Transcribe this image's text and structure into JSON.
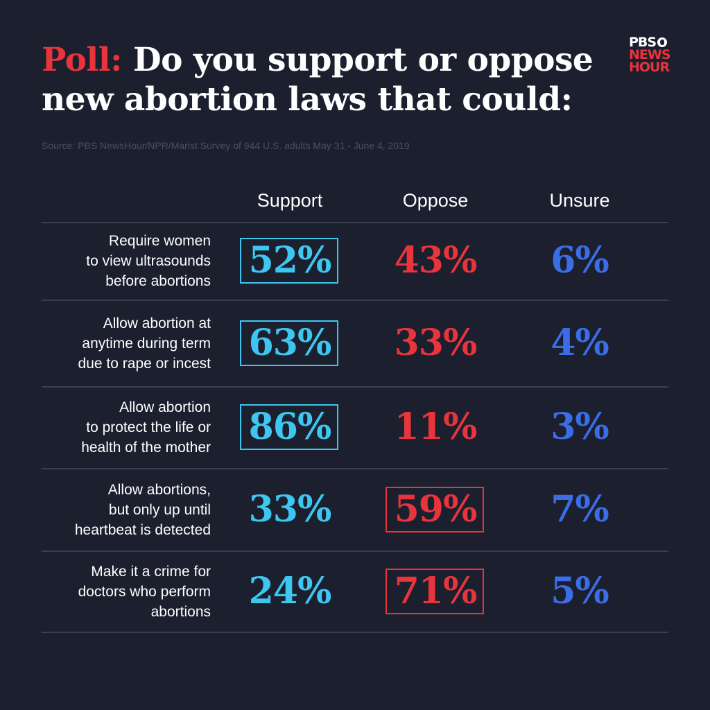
{
  "title": {
    "lead": "Poll:",
    "rest": "Do you support or oppose new abortion laws that could:"
  },
  "logo": {
    "line1": "PBS",
    "line2": "NEWS",
    "line3": "HOUR"
  },
  "source": "Source: PBS NewsHour/NPR/Marist  Survey of 944 U.S. adults May 31 - June 4, 2019",
  "colors": {
    "support": "#3dc7f0",
    "oppose": "#e8343c",
    "unsure": "#3a6de6",
    "background": "#1b1f2e"
  },
  "chart_data": {
    "type": "table",
    "columns": [
      "Support",
      "Oppose",
      "Unsure"
    ],
    "rows": [
      {
        "label": [
          "Require women",
          "to view ultrasounds",
          "before abortions"
        ],
        "values": [
          "52%",
          "43%",
          "6%"
        ],
        "highlight": "Support"
      },
      {
        "label": [
          "Allow abortion at",
          "anytime during term",
          "due to rape or incest"
        ],
        "values": [
          "63%",
          "33%",
          "4%"
        ],
        "highlight": "Support"
      },
      {
        "label": [
          "Allow abortion",
          "to protect the life or",
          "health of the mother"
        ],
        "values": [
          "86%",
          "11%",
          "3%"
        ],
        "highlight": "Support"
      },
      {
        "label": [
          "Allow abortions,",
          "but only up until",
          "heartbeat is detected"
        ],
        "values": [
          "33%",
          "59%",
          "7%"
        ],
        "highlight": "Oppose"
      },
      {
        "label": [
          "Make it a crime for",
          "doctors who perform",
          "abortions"
        ],
        "values": [
          "24%",
          "71%",
          "5%"
        ],
        "highlight": "Oppose"
      }
    ]
  }
}
